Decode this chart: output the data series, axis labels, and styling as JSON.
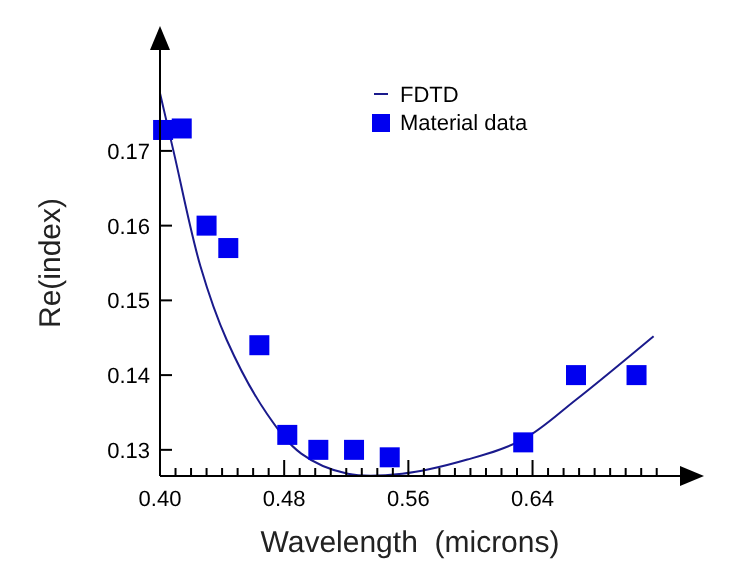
{
  "chart_data": {
    "type": "scatter",
    "xlabel": "Wavelength  (microns)",
    "ylabel": "Re(index)",
    "xlim": [
      0.4,
      0.735
    ],
    "ylim": [
      0.1265,
      0.1835
    ],
    "xticks": [
      {
        "value": 0.4,
        "label": "0.40"
      },
      {
        "value": 0.41,
        "label": null
      },
      {
        "value": 0.42,
        "label": null
      },
      {
        "value": 0.43,
        "label": null
      },
      {
        "value": 0.44,
        "label": null
      },
      {
        "value": 0.45,
        "label": null
      },
      {
        "value": 0.46,
        "label": null
      },
      {
        "value": 0.47,
        "label": null
      },
      {
        "value": 0.48,
        "label": "0.48"
      },
      {
        "value": 0.49,
        "label": null
      },
      {
        "value": 0.5,
        "label": null
      },
      {
        "value": 0.51,
        "label": null
      },
      {
        "value": 0.52,
        "label": null
      },
      {
        "value": 0.53,
        "label": null
      },
      {
        "value": 0.54,
        "label": null
      },
      {
        "value": 0.55,
        "label": null
      },
      {
        "value": 0.56,
        "label": "0.56"
      },
      {
        "value": 0.57,
        "label": null
      },
      {
        "value": 0.58,
        "label": null
      },
      {
        "value": 0.59,
        "label": null
      },
      {
        "value": 0.6,
        "label": null
      },
      {
        "value": 0.61,
        "label": null
      },
      {
        "value": 0.62,
        "label": null
      },
      {
        "value": 0.63,
        "label": null
      },
      {
        "value": 0.64,
        "label": "0.64"
      },
      {
        "value": 0.65,
        "label": null
      },
      {
        "value": 0.66,
        "label": null
      },
      {
        "value": 0.67,
        "label": null
      },
      {
        "value": 0.68,
        "label": null
      },
      {
        "value": 0.69,
        "label": null
      },
      {
        "value": 0.7,
        "label": null
      },
      {
        "value": 0.71,
        "label": null
      },
      {
        "value": 0.72,
        "label": null
      }
    ],
    "yticks": [
      0.13,
      0.14,
      0.15,
      0.16,
      0.17
    ],
    "grid": false,
    "legend": "top right",
    "series": [
      {
        "name": "FDTD",
        "type": "line",
        "color": "#1a1a8c",
        "marker": "none",
        "line_style": "solid",
        "x": [
          0.4,
          0.409,
          0.426,
          0.443,
          0.469,
          0.491,
          0.521,
          0.556,
          0.598,
          0.634,
          0.668,
          0.718
        ],
        "values": [
          0.1777,
          0.1697,
          0.1546,
          0.1447,
          0.1348,
          0.1295,
          0.1268,
          0.1268,
          0.1287,
          0.1314,
          0.1367,
          0.1452
        ]
      },
      {
        "name": "Material data",
        "color": "#0000f0",
        "marker": "square",
        "x": [
          0.402,
          0.414,
          0.43,
          0.444,
          0.464,
          0.482,
          0.502,
          0.525,
          0.548,
          0.634,
          0.668,
          0.707
        ],
        "values": [
          0.1728,
          0.173,
          0.16,
          0.157,
          0.144,
          0.132,
          0.13,
          0.13,
          0.129,
          0.131,
          0.14,
          0.14
        ]
      }
    ]
  }
}
